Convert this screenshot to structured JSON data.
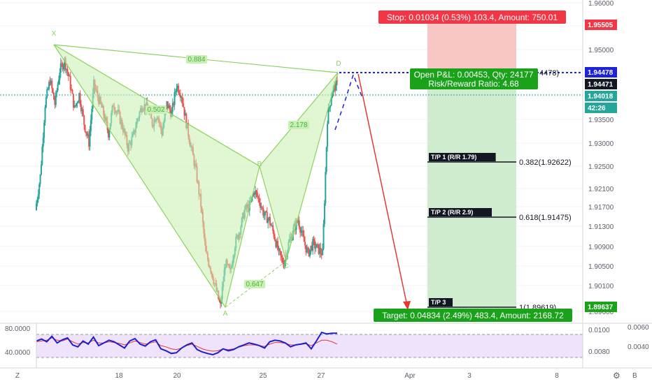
{
  "colors": {
    "up": "#26a69a",
    "down": "#ef5350",
    "pattern": "#8bd35c",
    "pattern_fill": "#c8f0b0",
    "stop_zone": "#f9c6c6",
    "target_zone": "#cfeccf",
    "axis_text": "#5d606b",
    "price_line": "#26a69a",
    "entry_line": "#1e22d8",
    "osc_blue": "#1a1fd1",
    "osc_red": "#e53935",
    "osc_band": "#efe2fb",
    "tp_line": "#131722"
  },
  "chart_data": [
    {
      "type": "candlestick",
      "title": "",
      "ylim": [
        1.896,
        1.96
      ],
      "y_ticks": [
        "1.96000",
        "1.95500",
        "1.95000",
        "1.94500",
        "1.94000",
        "1.93500",
        "1.93000",
        "1.92500",
        "1.92100",
        "1.91700",
        "1.91300",
        "1.90900",
        "1.90500",
        "1.90100",
        "1.89600"
      ],
      "x_tick_labels": [
        "18",
        "20",
        "25",
        "27",
        "Apr",
        "3",
        "8"
      ],
      "price_labels": {
        "stop": "1.95505",
        "entry": "1.94478",
        "current": "1.94471",
        "last": "1.94018",
        "countdown": "42:26",
        "target": "1.89637"
      },
      "close_path": [
        1.917,
        1.924,
        1.939,
        1.944,
        1.939,
        1.946,
        1.948,
        1.944,
        1.938,
        1.941,
        1.935,
        1.931,
        1.943,
        1.94,
        1.937,
        1.933,
        1.939,
        1.937,
        1.934,
        1.93,
        1.932,
        1.936,
        1.939,
        1.938,
        1.935,
        1.937,
        1.933,
        1.939,
        1.937,
        1.943,
        1.941,
        1.935,
        1.93,
        1.925,
        1.918,
        1.908,
        1.905,
        1.901,
        1.897,
        1.906,
        1.904,
        1.91,
        1.913,
        1.917,
        1.918,
        1.921,
        1.919,
        1.916,
        1.915,
        1.912,
        1.908,
        1.906,
        1.91,
        1.913,
        1.915,
        1.911,
        1.908,
        1.91,
        1.909,
        1.908,
        1.936,
        1.942,
        1.943
      ],
      "harmonic_pattern": {
        "points": [
          {
            "name": "X",
            "date": "Mar 16",
            "price": 1.9512
          },
          {
            "name": "A",
            "date": "Mar 23",
            "price": 1.8975
          },
          {
            "name": "B",
            "date": "Mar 25",
            "price": 1.9238
          },
          {
            "name": "C",
            "date": "Mar 26",
            "price": 1.9055
          },
          {
            "name": "D",
            "date": "Mar 27",
            "price": 1.9448
          }
        ],
        "ratios": [
          {
            "label": "0.884",
            "between": "X-D"
          },
          {
            "label": "0.502",
            "between": "X-B"
          },
          {
            "label": "2.178",
            "between": "B-D"
          },
          {
            "label": "0.647",
            "between": "A-C"
          }
        ]
      },
      "position": {
        "side": "short",
        "stop_label": "Stop: 0.01034 (0.53%) 103.4, Amount: 750.01",
        "pnl_label": "Open P&L: 0.00453, Qty: 24177",
        "rr_label": "Risk/Reward Ratio: 4.68",
        "entry_level_text": "4478)",
        "target_label": "Target: 0.04834 (2.49%) 483.4, Amount: 2168.72"
      },
      "take_profits": [
        {
          "label": "T/P 1 (R/R 1.79)",
          "level_text": "0.382(1.92622)",
          "price": 1.92622
        },
        {
          "label": "T/P 2 (R/R 2.9)",
          "level_text": "0.618(1.91475)",
          "price": 1.91475
        },
        {
          "label": "T/P 3",
          "level_text": "1(1.89619)",
          "price": 1.89619
        }
      ]
    },
    {
      "type": "line",
      "title": "",
      "left_ticks": [
        "80.0000",
        "40.0000"
      ],
      "right_ticks_inner": [
        "0.0100",
        "0.0080"
      ],
      "right_ticks_outer": [
        "0.0060",
        "0.0040"
      ],
      "series": [
        {
          "color": "blue",
          "values": [
            60,
            65,
            58,
            72,
            55,
            63,
            68,
            50,
            45,
            60,
            52,
            70,
            48,
            55,
            62,
            58,
            50,
            42,
            60,
            66,
            52,
            47,
            58,
            63,
            40,
            35,
            28,
            30,
            42,
            50,
            55,
            38,
            32,
            28,
            25,
            30,
            40,
            35,
            38,
            45,
            50,
            55,
            52,
            48,
            42,
            58,
            62,
            60,
            55,
            45,
            50,
            52,
            55,
            40,
            60,
            82,
            78,
            80,
            80
          ]
        },
        {
          "color": "red",
          "values": [
            58,
            60,
            62,
            68,
            62,
            60,
            65,
            58,
            52,
            56,
            55,
            62,
            55,
            55,
            58,
            56,
            54,
            50,
            55,
            60,
            56,
            52,
            55,
            58,
            48,
            45,
            40,
            38,
            42,
            48,
            52,
            46,
            40,
            36,
            34,
            35,
            40,
            38,
            40,
            44,
            48,
            50,
            50,
            48,
            46,
            52,
            56,
            56,
            54,
            50,
            50,
            51,
            53,
            48,
            55,
            62,
            62,
            58,
            52
          ]
        }
      ]
    }
  ],
  "footer": {
    "left_marker": "Z",
    "mid_marker": "⚙",
    "right_marker": "B"
  }
}
